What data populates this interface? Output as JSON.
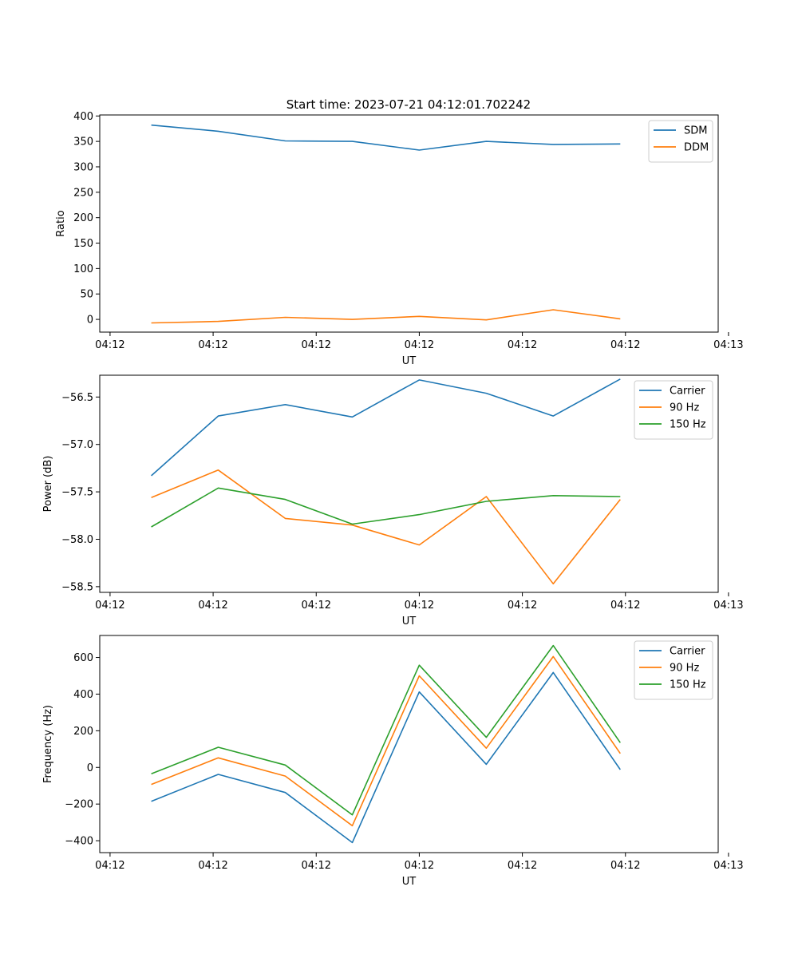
{
  "figure_title": "Start time: 2023-07-21 04:12:01.702242",
  "colors": {
    "blue": "#1f77b4",
    "orange": "#ff7f0e",
    "green": "#2ca02c"
  },
  "chart_data": [
    {
      "type": "line",
      "title": "Start time: 2023-07-21 04:12:01.702242",
      "xlabel": "UT",
      "ylabel": "Ratio",
      "x": [
        1.0,
        1.65,
        2.3,
        2.95,
        3.6,
        4.25,
        4.9,
        5.55
      ],
      "xlim": [
        0.5,
        6.5
      ],
      "x_ticks": [
        0.6,
        1.6,
        2.6,
        3.6,
        4.6,
        5.6,
        6.6
      ],
      "x_tick_labels": [
        "04:12",
        "04:12",
        "04:12",
        "04:12",
        "04:12",
        "04:12",
        "04:13"
      ],
      "ylim": [
        -25,
        402
      ],
      "y_ticks": [
        0,
        50,
        100,
        150,
        200,
        250,
        300,
        350,
        400
      ],
      "y_tick_labels": [
        "0",
        "50",
        "100",
        "150",
        "200",
        "250",
        "300",
        "350",
        "400"
      ],
      "legend_position": "top-right",
      "series": [
        {
          "name": "SDM",
          "color": "#1f77b4",
          "values": [
            382,
            370,
            351,
            350,
            333,
            350,
            344,
            345
          ]
        },
        {
          "name": "DDM",
          "color": "#ff7f0e",
          "values": [
            -7,
            -4,
            4,
            0,
            6,
            -1,
            19,
            1
          ]
        }
      ]
    },
    {
      "type": "line",
      "title": "",
      "xlabel": "UT",
      "ylabel": "Power (dB)",
      "x": [
        1.0,
        1.65,
        2.3,
        2.95,
        3.6,
        4.25,
        4.9,
        5.55
      ],
      "xlim": [
        0.5,
        6.5
      ],
      "x_ticks": [
        0.6,
        1.6,
        2.6,
        3.6,
        4.6,
        5.6,
        6.6
      ],
      "x_tick_labels": [
        "04:12",
        "04:12",
        "04:12",
        "04:12",
        "04:12",
        "04:12",
        "04:13"
      ],
      "ylim": [
        -58.56,
        -56.27
      ],
      "y_ticks": [
        -56.5,
        -57.0,
        -57.5,
        -58.0,
        -58.5
      ],
      "y_tick_labels": [
        "−56.5",
        "−57.0",
        "−57.5",
        "−58.0",
        "−58.5"
      ],
      "legend_position": "top-right",
      "series": [
        {
          "name": "Carrier",
          "color": "#1f77b4",
          "values": [
            -57.33,
            -56.7,
            -56.58,
            -56.71,
            -56.32,
            -56.46,
            -56.7,
            -56.31
          ]
        },
        {
          "name": "90 Hz",
          "color": "#ff7f0e",
          "values": [
            -57.56,
            -57.27,
            -57.78,
            -57.85,
            -58.06,
            -57.55,
            -58.47,
            -57.58
          ]
        },
        {
          "name": "150 Hz",
          "color": "#2ca02c",
          "values": [
            -57.87,
            -57.46,
            -57.58,
            -57.84,
            -57.74,
            -57.6,
            -57.54,
            -57.55
          ]
        }
      ]
    },
    {
      "type": "line",
      "title": "",
      "xlabel": "UT",
      "ylabel": "Frequency (Hz)",
      "x": [
        1.0,
        1.65,
        2.3,
        2.95,
        3.6,
        4.25,
        4.9,
        5.55
      ],
      "xlim": [
        0.5,
        6.5
      ],
      "x_ticks": [
        0.6,
        1.6,
        2.6,
        3.6,
        4.6,
        5.6,
        6.6
      ],
      "x_tick_labels": [
        "04:12",
        "04:12",
        "04:12",
        "04:12",
        "04:12",
        "04:12",
        "04:13"
      ],
      "ylim": [
        -465,
        720
      ],
      "y_ticks": [
        600,
        400,
        200,
        0,
        -200,
        -400
      ],
      "y_tick_labels": [
        "600",
        "400",
        "200",
        "0",
        "−200",
        "−400"
      ],
      "legend_position": "top-right",
      "series": [
        {
          "name": "Carrier",
          "color": "#1f77b4",
          "values": [
            -185,
            -38,
            -137,
            -410,
            412,
            17,
            518,
            -12
          ]
        },
        {
          "name": "90 Hz",
          "color": "#ff7f0e",
          "values": [
            -93,
            52,
            -47,
            -318,
            500,
            105,
            605,
            76
          ]
        },
        {
          "name": "150 Hz",
          "color": "#2ca02c",
          "values": [
            -35,
            110,
            13,
            -259,
            558,
            164,
            665,
            135
          ]
        }
      ]
    }
  ]
}
